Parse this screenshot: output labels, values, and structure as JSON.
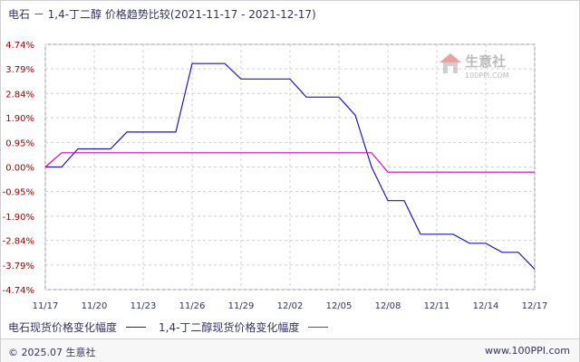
{
  "header": {
    "title": "电石 － 1,4-丁二醇  价格趋势比较",
    "date_range": "(2021-11-17 - 2021-12-17)"
  },
  "watermark": {
    "brand": "生意社",
    "url": "100PPI.COM"
  },
  "footer": {
    "copyright": "© 2025.07 生意社",
    "url": "www.100PPI.com"
  },
  "colors": {
    "series1": "#1a1ab8",
    "series2": "#d400c8",
    "grid": "#cfcfcf",
    "ytick": "#a00000",
    "xtick": "#333366"
  },
  "chart_data": {
    "type": "line",
    "title": "电石 － 1,4-丁二醇  价格趋势比较",
    "subtitle": "(2021-11-17 - 2021-12-17)",
    "xlabel": "",
    "ylabel": "",
    "ylim": [
      -4.74,
      4.74
    ],
    "grid": true,
    "legend_position": "bottom-left",
    "y_ticks": [
      "4.74%",
      "3.79%",
      "2.84%",
      "1.90%",
      "0.95%",
      "0.00%",
      "-0.95%",
      "-1.90%",
      "-2.84%",
      "-3.79%",
      "-4.74%"
    ],
    "y_tick_values": [
      4.74,
      3.79,
      2.84,
      1.9,
      0.95,
      0.0,
      -0.95,
      -1.9,
      -2.84,
      -3.79,
      -4.74
    ],
    "x_ticks": [
      "11/17",
      "11/20",
      "11/23",
      "11/26",
      "11/29",
      "12/02",
      "12/05",
      "12/08",
      "12/11",
      "12/14",
      "12/17"
    ],
    "x_tick_values": [
      0,
      3,
      6,
      9,
      12,
      15,
      18,
      21,
      24,
      27,
      30
    ],
    "series": [
      {
        "name": "电石现货价格变化幅度",
        "color": "#1a1ab8",
        "x": [
          0,
          1,
          2,
          3,
          4,
          5,
          6,
          7,
          8,
          9,
          10,
          11,
          12,
          13,
          14,
          15,
          16,
          17,
          18,
          19,
          20,
          21,
          22,
          23,
          24,
          25,
          26,
          27,
          28,
          29,
          30
        ],
        "values": [
          0.0,
          0.0,
          0.7,
          0.7,
          0.7,
          1.35,
          1.35,
          1.35,
          1.35,
          4.0,
          4.0,
          4.0,
          3.4,
          3.4,
          3.4,
          3.4,
          2.7,
          2.7,
          2.7,
          2.0,
          0.0,
          -1.3,
          -1.3,
          -2.6,
          -2.6,
          -2.6,
          -2.95,
          -2.95,
          -3.3,
          -3.3,
          -3.95
        ]
      },
      {
        "name": "1,4-丁二醇现货价格变化幅度",
        "color": "#d400c8",
        "x": [
          0,
          1,
          2,
          3,
          4,
          5,
          6,
          7,
          8,
          9,
          10,
          11,
          12,
          13,
          14,
          15,
          16,
          17,
          18,
          19,
          20,
          21,
          22,
          23,
          24,
          25,
          26,
          27,
          28,
          29,
          30
        ],
        "values": [
          0.0,
          0.55,
          0.55,
          0.55,
          0.55,
          0.55,
          0.55,
          0.55,
          0.55,
          0.55,
          0.55,
          0.55,
          0.55,
          0.55,
          0.55,
          0.55,
          0.55,
          0.55,
          0.55,
          0.55,
          0.55,
          -0.2,
          -0.2,
          -0.2,
          -0.2,
          -0.2,
          -0.2,
          -0.2,
          -0.2,
          -0.2,
          -0.2
        ]
      }
    ]
  }
}
